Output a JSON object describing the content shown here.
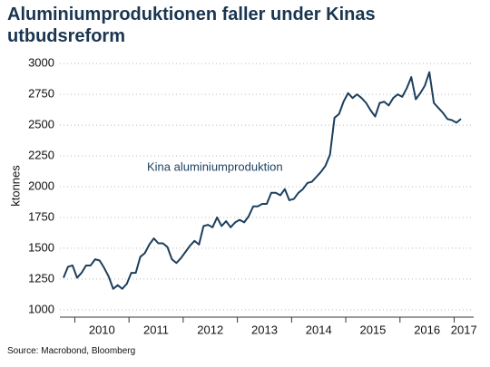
{
  "chart_data": {
    "type": "line",
    "title": "Aluminiumproduktionen faller under Kinas utbudsreform",
    "ylabel": "ktonnes",
    "annotation": "Kina aluminiumproduktion",
    "source": "Source: Macrobond, Bloomberg",
    "year_labels": [
      "2010",
      "2011",
      "2012",
      "2013",
      "2014",
      "2015",
      "2016",
      "2017"
    ],
    "categories": [
      null,
      null,
      null,
      null,
      null,
      null,
      null,
      null,
      null,
      null,
      null,
      null,
      null,
      null,
      null,
      null,
      null,
      null,
      null,
      null,
      null,
      null,
      null,
      null,
      null,
      null,
      null,
      null,
      null,
      null,
      null,
      null,
      null,
      null,
      null,
      null,
      null,
      null,
      null,
      null,
      null,
      null,
      null,
      null,
      null,
      null,
      null,
      null,
      null,
      null,
      null,
      null,
      null,
      null,
      null,
      null,
      null,
      null,
      null,
      null,
      null,
      null,
      null,
      null,
      null,
      null,
      null,
      null,
      null,
      null,
      null,
      null,
      null,
      null,
      null,
      null,
      null,
      null,
      null,
      null,
      null,
      null,
      null,
      null,
      null,
      null,
      null,
      null,
      null
    ],
    "series": [
      {
        "name": "Kina aluminiumproduktion",
        "color": "#1b3f5e",
        "values": [
          1260,
          1350,
          1360,
          1260,
          1300,
          1360,
          1360,
          1410,
          1400,
          1340,
          1270,
          1170,
          1200,
          1170,
          1210,
          1300,
          1300,
          1430,
          1460,
          1530,
          1580,
          1540,
          1540,
          1510,
          1410,
          1380,
          1420,
          1470,
          1520,
          1560,
          1530,
          1680,
          1690,
          1670,
          1750,
          1680,
          1720,
          1670,
          1710,
          1730,
          1710,
          1760,
          1840,
          1840,
          1860,
          1860,
          1950,
          1950,
          1930,
          1980,
          1890,
          1900,
          1950,
          1980,
          2030,
          2040,
          2080,
          2120,
          2170,
          2260,
          2560,
          2590,
          2690,
          2760,
          2720,
          2750,
          2720,
          2680,
          2620,
          2570,
          2680,
          2690,
          2660,
          2720,
          2750,
          2730,
          2800,
          2890,
          2710,
          2760,
          2820,
          2930,
          2680,
          2640,
          2600,
          2550,
          2540,
          2520,
          2550
        ]
      }
    ],
    "ylim": [
      940,
      3060
    ],
    "yticks": [
      1000,
      1250,
      1500,
      1750,
      2000,
      2250,
      2500,
      2750,
      3000
    ],
    "grid": true
  }
}
